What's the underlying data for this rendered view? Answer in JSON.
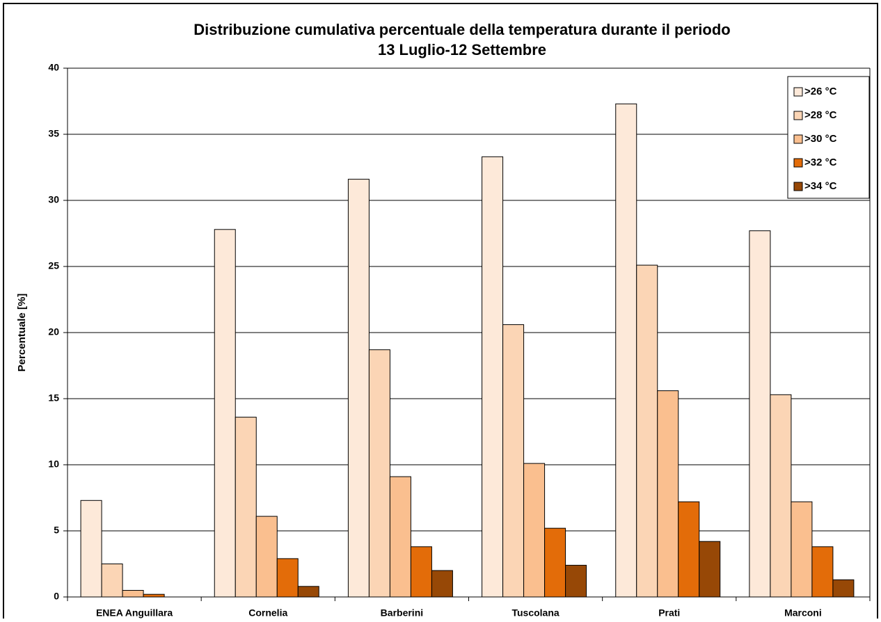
{
  "chart_data": {
    "type": "bar",
    "title": [
      "Distribuzione cumulativa percentuale della temperatura durante il periodo",
      "13 Luglio-12 Settembre"
    ],
    "y_label": "Percentuale [%]",
    "categories": [
      "ENEA Anguillara",
      "Cornelia",
      "Barberini",
      "Tuscolana",
      "Prati",
      "Marconi"
    ],
    "series": [
      {
        "name": ">26 °C",
        "color": "#fde9d9",
        "values": [
          7.3,
          27.8,
          31.6,
          33.3,
          37.3,
          27.7
        ]
      },
      {
        "name": ">28 °C",
        "color": "#fbd5b5",
        "values": [
          2.5,
          13.6,
          18.7,
          20.6,
          25.1,
          15.3
        ]
      },
      {
        "name": ">30 °C",
        "color": "#fabf8f",
        "values": [
          0.5,
          6.1,
          9.1,
          10.1,
          15.6,
          7.2
        ]
      },
      {
        "name": ">32 °C",
        "color": "#e36c09",
        "values": [
          0.2,
          2.9,
          3.8,
          5.2,
          7.2,
          3.8
        ]
      },
      {
        "name": ">34 °C",
        "color": "#974806",
        "values": [
          0,
          0.8,
          2.0,
          2.4,
          4.2,
          1.3
        ]
      }
    ],
    "ylim": [
      0,
      40
    ],
    "yticks": [
      0,
      5,
      10,
      15,
      20,
      25,
      30,
      35,
      40
    ],
    "grid": true,
    "legend": "top-right"
  }
}
